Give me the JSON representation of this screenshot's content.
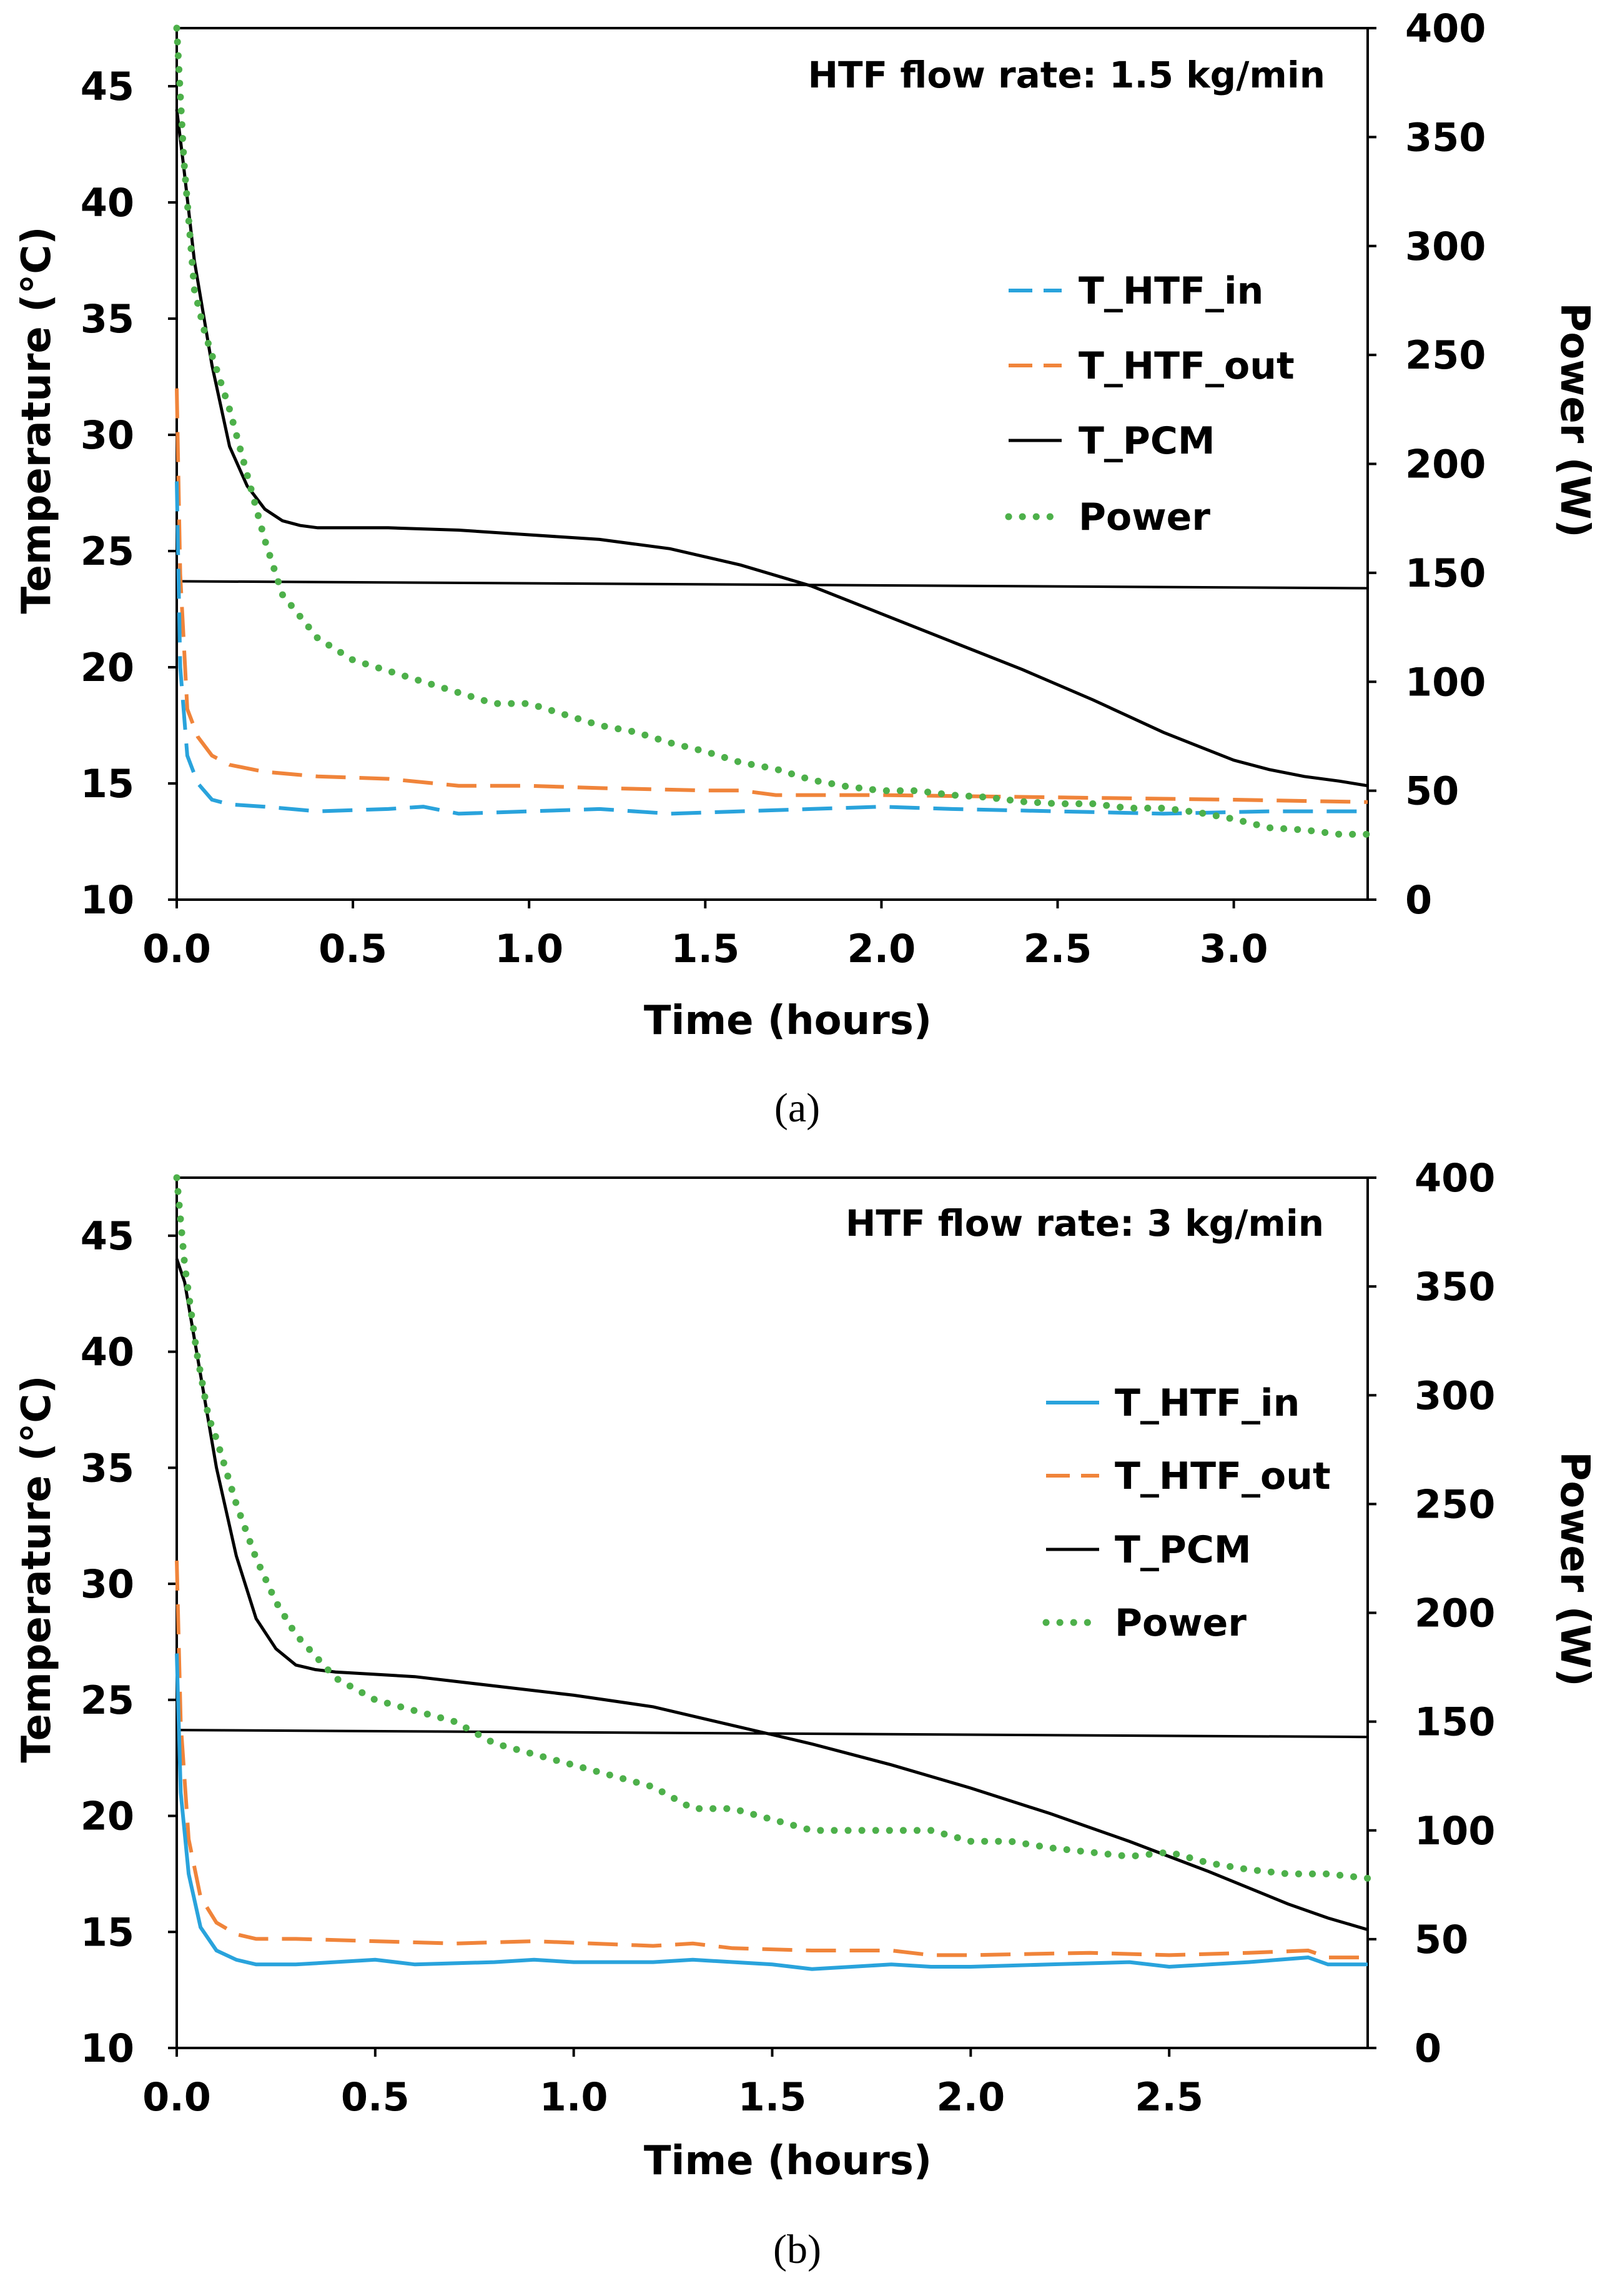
{
  "colors": {
    "T_HTF_in": "#29a3dc",
    "T_HTF_out": "#f0843a",
    "T_PCM": "#000000",
    "Power": "#4db04a",
    "reference_line": "#000000"
  },
  "chart_data": [
    {
      "id": "a",
      "type": "line",
      "caption": "(a)",
      "annotation": "HTF flow rate: 1.5 kg/min",
      "xlabel": "Time (hours)",
      "ylabel_left": "Temperature (°C)",
      "ylabel_right": "Power (W)",
      "xlim": [
        0,
        3.38
      ],
      "ylim_left": [
        10,
        47.5
      ],
      "ylim_right": [
        0,
        400
      ],
      "x_ticks": [
        "0.0",
        "0.5",
        "1.0",
        "1.5",
        "2.0",
        "2.5",
        "3.0"
      ],
      "y_left_ticks": [
        "10",
        "15",
        "20",
        "25",
        "30",
        "35",
        "40",
        "45"
      ],
      "y_right_ticks": [
        "0",
        "50",
        "100",
        "150",
        "200",
        "250",
        "300",
        "350",
        "400"
      ],
      "reference_line": {
        "start": [
          0,
          23.7
        ],
        "end": [
          3.38,
          23.4
        ]
      },
      "legend": [
        {
          "key": "T_HTF_in",
          "label": "T_HTF_in",
          "style": "dash"
        },
        {
          "key": "T_HTF_out",
          "label": "T_HTF_out",
          "style": "dash"
        },
        {
          "key": "T_PCM",
          "label": "T_PCM",
          "style": "solid"
        },
        {
          "key": "Power",
          "label": "Power",
          "style": "dot"
        }
      ],
      "series": [
        {
          "key": "T_HTF_in",
          "name": "T_HTF_in",
          "axis": "left",
          "style": "dash",
          "x": [
            0,
            0.01,
            0.03,
            0.06,
            0.1,
            0.15,
            0.25,
            0.4,
            0.6,
            0.7,
            0.8,
            1.0,
            1.2,
            1.4,
            1.6,
            1.8,
            2.0,
            2.2,
            2.5,
            2.8,
            3.1,
            3.38
          ],
          "y": [
            28,
            20,
            16.2,
            15,
            14.3,
            14.1,
            14.0,
            13.8,
            13.9,
            14.0,
            13.7,
            13.8,
            13.9,
            13.7,
            13.8,
            13.9,
            14.0,
            13.9,
            13.8,
            13.7,
            13.8,
            13.8
          ]
        },
        {
          "key": "T_HTF_out",
          "name": "T_HTF_out",
          "axis": "left",
          "style": "dash",
          "x": [
            0,
            0.01,
            0.03,
            0.06,
            0.1,
            0.15,
            0.25,
            0.4,
            0.6,
            0.8,
            1.0,
            1.2,
            1.5,
            1.6,
            1.7,
            2.0,
            2.5,
            3.0,
            3.38
          ],
          "y": [
            32,
            24,
            18.2,
            17,
            16.2,
            15.8,
            15.5,
            15.3,
            15.2,
            14.9,
            14.9,
            14.8,
            14.7,
            14.7,
            14.5,
            14.5,
            14.4,
            14.3,
            14.2
          ]
        },
        {
          "key": "T_PCM",
          "name": "T_PCM",
          "axis": "left",
          "style": "solid",
          "x": [
            0,
            0.02,
            0.05,
            0.1,
            0.15,
            0.2,
            0.25,
            0.3,
            0.35,
            0.4,
            0.6,
            0.8,
            1.0,
            1.2,
            1.4,
            1.6,
            1.8,
            2.0,
            2.2,
            2.4,
            2.6,
            2.8,
            3.0,
            3.1,
            3.2,
            3.3,
            3.38
          ],
          "y": [
            44,
            41.5,
            37.5,
            33,
            29.5,
            27.8,
            26.8,
            26.3,
            26.1,
            26.0,
            26.0,
            25.9,
            25.7,
            25.5,
            25.1,
            24.4,
            23.5,
            22.3,
            21.1,
            19.9,
            18.6,
            17.2,
            16.0,
            15.6,
            15.3,
            15.1,
            14.9
          ]
        },
        {
          "key": "Power",
          "name": "Power",
          "axis": "right",
          "style": "dot",
          "x": [
            0,
            0.02,
            0.05,
            0.08,
            0.1,
            0.15,
            0.2,
            0.25,
            0.3,
            0.4,
            0.5,
            0.6,
            0.7,
            0.8,
            0.9,
            1.0,
            1.1,
            1.2,
            1.3,
            1.4,
            1.5,
            1.6,
            1.7,
            1.8,
            1.9,
            2.0,
            2.1,
            2.2,
            2.3,
            2.4,
            2.5,
            2.6,
            2.7,
            2.8,
            2.9,
            3.0,
            3.1,
            3.2,
            3.3,
            3.38
          ],
          "y": [
            400,
            340,
            280,
            260,
            250,
            225,
            195,
            165,
            140,
            120,
            110,
            105,
            100,
            95,
            90,
            90,
            85,
            80,
            77,
            72,
            68,
            63,
            60,
            55,
            52,
            50,
            50,
            48,
            47,
            45,
            44,
            44,
            42,
            42,
            40,
            37,
            33,
            32,
            30,
            30
          ]
        }
      ]
    },
    {
      "id": "b",
      "type": "line",
      "caption": "(b)",
      "annotation": "HTF flow rate: 3 kg/min",
      "xlabel": "Time (hours)",
      "ylabel_left": "Temperature (°C)",
      "ylabel_right": "Power (W)",
      "xlim": [
        0,
        3.0
      ],
      "ylim_left": [
        10,
        47.5
      ],
      "ylim_right": [
        0,
        400
      ],
      "x_ticks": [
        "0.0",
        "0.5",
        "1.0",
        "1.5",
        "2.0",
        "2.5"
      ],
      "y_left_ticks": [
        "10",
        "15",
        "20",
        "25",
        "30",
        "35",
        "40",
        "45"
      ],
      "y_right_ticks": [
        "0",
        "50",
        "100",
        "150",
        "200",
        "250",
        "300",
        "350",
        "400"
      ],
      "reference_line": {
        "start": [
          0,
          23.7
        ],
        "end": [
          3.0,
          23.4
        ]
      },
      "legend": [
        {
          "key": "T_HTF_in",
          "label": "T_HTF_in",
          "style": "solid"
        },
        {
          "key": "T_HTF_out",
          "label": "T_HTF_out",
          "style": "dash"
        },
        {
          "key": "T_PCM",
          "label": "T_PCM",
          "style": "solid"
        },
        {
          "key": "Power",
          "label": "Power",
          "style": "dot"
        }
      ],
      "series": [
        {
          "key": "T_HTF_in",
          "name": "T_HTF_in",
          "axis": "left",
          "style": "solid",
          "x": [
            0,
            0.01,
            0.03,
            0.06,
            0.1,
            0.15,
            0.2,
            0.3,
            0.5,
            0.6,
            0.8,
            0.9,
            1.0,
            1.2,
            1.3,
            1.5,
            1.6,
            1.8,
            1.9,
            2.0,
            2.2,
            2.4,
            2.5,
            2.7,
            2.85,
            2.9,
            3.0
          ],
          "y": [
            27,
            21,
            17.5,
            15.2,
            14.2,
            13.8,
            13.6,
            13.6,
            13.8,
            13.6,
            13.7,
            13.8,
            13.7,
            13.7,
            13.8,
            13.6,
            13.4,
            13.6,
            13.5,
            13.5,
            13.6,
            13.7,
            13.5,
            13.7,
            13.9,
            13.6,
            13.6
          ]
        },
        {
          "key": "T_HTF_out",
          "name": "T_HTF_out",
          "axis": "left",
          "style": "dash",
          "x": [
            0,
            0.01,
            0.03,
            0.06,
            0.1,
            0.15,
            0.2,
            0.3,
            0.5,
            0.7,
            0.9,
            1.2,
            1.3,
            1.4,
            1.6,
            1.8,
            1.9,
            2.0,
            2.3,
            2.5,
            2.7,
            2.85,
            2.9,
            3.0
          ],
          "y": [
            31,
            24,
            19,
            16.5,
            15.4,
            14.9,
            14.7,
            14.7,
            14.6,
            14.5,
            14.6,
            14.4,
            14.5,
            14.3,
            14.2,
            14.2,
            14.0,
            14.0,
            14.1,
            14.0,
            14.1,
            14.2,
            13.9,
            13.9
          ]
        },
        {
          "key": "T_PCM",
          "name": "T_PCM",
          "axis": "left",
          "style": "solid",
          "x": [
            0,
            0.02,
            0.05,
            0.1,
            0.15,
            0.2,
            0.25,
            0.3,
            0.35,
            0.4,
            0.6,
            0.8,
            1.0,
            1.2,
            1.4,
            1.5,
            1.6,
            1.8,
            2.0,
            2.2,
            2.4,
            2.6,
            2.8,
            2.9,
            3.0
          ],
          "y": [
            44,
            43,
            40,
            35,
            31.2,
            28.5,
            27.2,
            26.5,
            26.3,
            26.2,
            26.0,
            25.6,
            25.2,
            24.7,
            23.9,
            23.5,
            23.1,
            22.2,
            21.2,
            20.1,
            18.9,
            17.6,
            16.2,
            15.6,
            15.1
          ]
        },
        {
          "key": "Power",
          "name": "Power",
          "axis": "right",
          "style": "dot",
          "x": [
            0,
            0.02,
            0.05,
            0.08,
            0.1,
            0.15,
            0.2,
            0.25,
            0.3,
            0.4,
            0.5,
            0.6,
            0.7,
            0.8,
            0.9,
            1.0,
            1.1,
            1.2,
            1.3,
            1.4,
            1.5,
            1.6,
            1.7,
            1.8,
            1.9,
            2.0,
            2.1,
            2.2,
            2.3,
            2.4,
            2.5,
            2.6,
            2.7,
            2.8,
            2.9,
            3.0
          ],
          "y": [
            400,
            360,
            320,
            290,
            280,
            250,
            225,
            205,
            190,
            170,
            160,
            155,
            150,
            140,
            135,
            130,
            125,
            120,
            110,
            110,
            105,
            100,
            100,
            100,
            100,
            95,
            95,
            92,
            90,
            88,
            90,
            85,
            82,
            80,
            80,
            78
          ]
        }
      ]
    }
  ]
}
